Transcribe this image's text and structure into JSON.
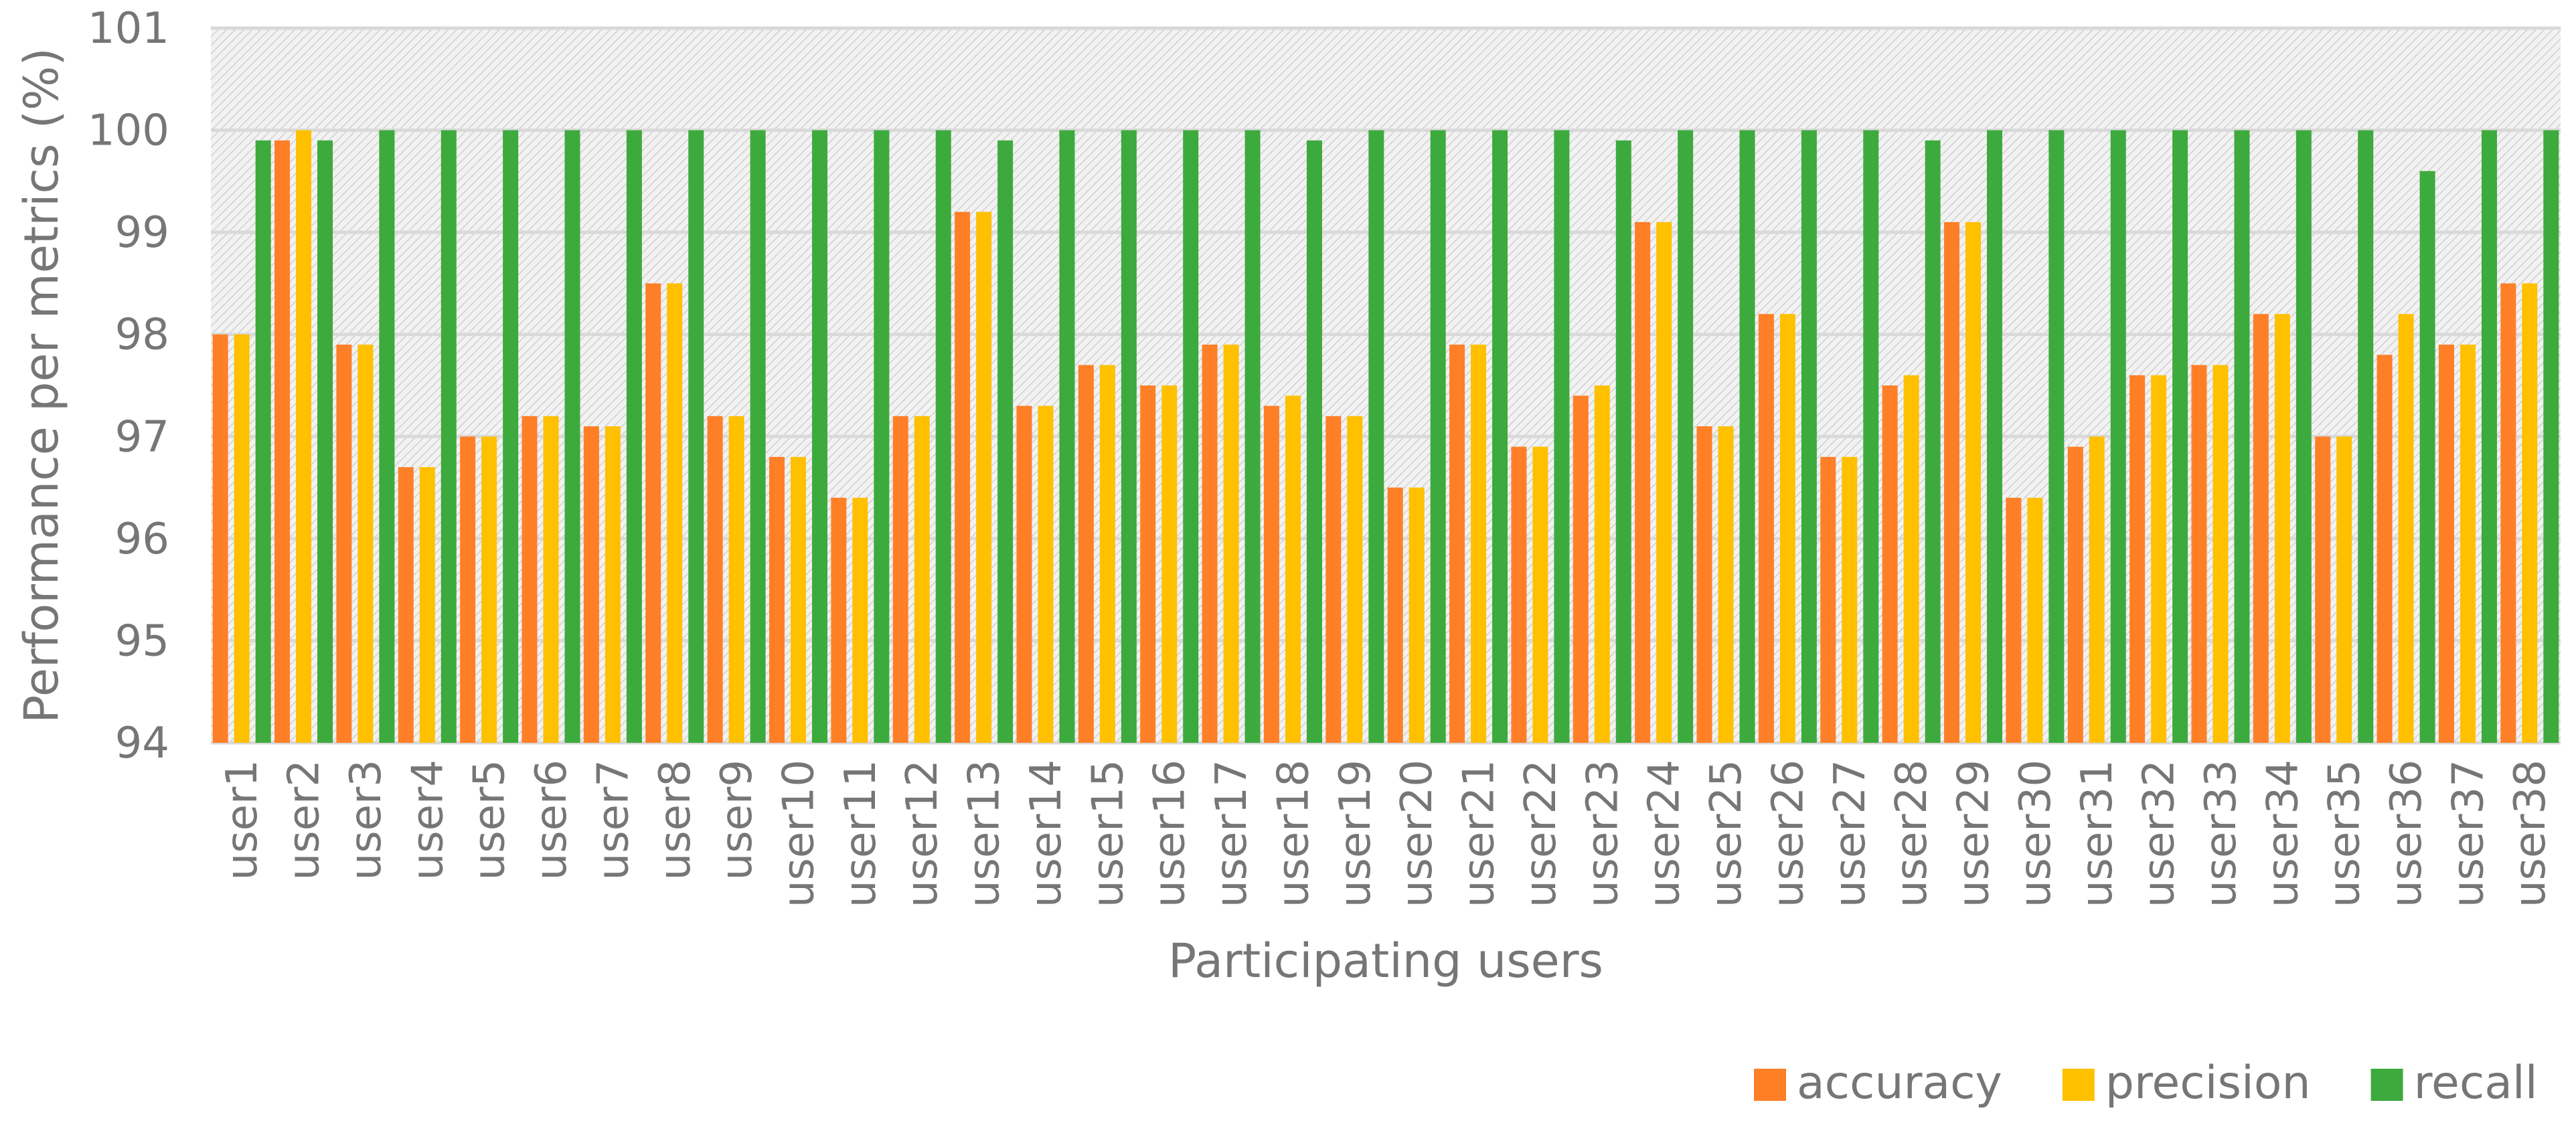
{
  "chart_data": {
    "type": "bar",
    "title": "",
    "xlabel": "Participating users",
    "ylabel": "Performance per metrics (%)",
    "ylim": [
      94,
      101
    ],
    "yticks": [
      94,
      95,
      96,
      97,
      98,
      99,
      100,
      101
    ],
    "grid": true,
    "legend_position": "bottom-right",
    "categories": [
      "user1",
      "user2",
      "user3",
      "user4",
      "user5",
      "user6",
      "user7",
      "user8",
      "user9",
      "user10",
      "user11",
      "user12",
      "user13",
      "user14",
      "user15",
      "user16",
      "user17",
      "user18",
      "user19",
      "user20",
      "user21",
      "user22",
      "user23",
      "user24",
      "user25",
      "user26",
      "user27",
      "user28",
      "user29",
      "user30",
      "user31",
      "user32",
      "user33",
      "user34",
      "user35",
      "user36",
      "user37",
      "user38"
    ],
    "series": [
      {
        "name": "accuracy",
        "color": "#FF7F27",
        "values": [
          98.0,
          99.9,
          97.9,
          96.7,
          97.0,
          97.2,
          97.1,
          98.5,
          97.2,
          96.8,
          96.4,
          97.2,
          99.2,
          97.3,
          97.7,
          97.5,
          97.9,
          97.3,
          97.2,
          96.5,
          97.9,
          96.9,
          97.4,
          99.1,
          97.1,
          98.2,
          96.8,
          97.5,
          99.1,
          96.4,
          96.9,
          97.6,
          97.7,
          98.2,
          97.0,
          97.8,
          97.9,
          98.5
        ]
      },
      {
        "name": "precision",
        "color": "#FFC000",
        "values": [
          98.0,
          100.0,
          97.9,
          96.7,
          97.0,
          97.2,
          97.1,
          98.5,
          97.2,
          96.8,
          96.4,
          97.2,
          99.2,
          97.3,
          97.7,
          97.5,
          97.9,
          97.4,
          97.2,
          96.5,
          97.9,
          96.9,
          97.5,
          99.1,
          97.1,
          98.2,
          96.8,
          97.6,
          99.1,
          96.4,
          97.0,
          97.6,
          97.7,
          98.2,
          97.0,
          98.2,
          97.9,
          98.5
        ]
      },
      {
        "name": "recall",
        "color": "#3DAA3D",
        "values": [
          99.9,
          99.9,
          100.0,
          100.0,
          100.0,
          100.0,
          100.0,
          100.0,
          100.0,
          100.0,
          100.0,
          100.0,
          99.9,
          100.0,
          100.0,
          100.0,
          100.0,
          99.9,
          100.0,
          100.0,
          100.0,
          100.0,
          99.9,
          100.0,
          100.0,
          100.0,
          100.0,
          99.9,
          100.0,
          100.0,
          100.0,
          100.0,
          100.0,
          100.0,
          100.0,
          99.6,
          100.0,
          100.0
        ]
      }
    ]
  }
}
